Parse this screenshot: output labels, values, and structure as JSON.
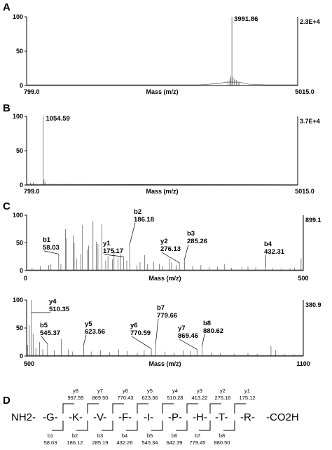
{
  "chart_data": [
    {
      "type": "line",
      "panel": "A",
      "xlabel": "Mass (m/z)",
      "xlim": [
        799.0,
        5015.0
      ],
      "ylim": [
        0,
        100
      ],
      "yticks": [
        "100",
        "50",
        "0"
      ],
      "x_min_label": "799.0",
      "x_max_label": "5015.0",
      "right_label": "2.3E+4",
      "peak_label": "3991.86",
      "peaks": [
        {
          "x": 3991.86,
          "y": 100
        },
        {
          "x": 3960,
          "y": 10
        },
        {
          "x": 3975,
          "y": 14
        },
        {
          "x": 4010,
          "y": 12
        },
        {
          "x": 4030,
          "y": 9
        },
        {
          "x": 4060,
          "y": 8
        },
        {
          "x": 3930,
          "y": 6
        },
        {
          "x": 4090,
          "y": 5
        },
        {
          "x": 4110,
          "y": 4
        }
      ],
      "baseline": [
        {
          "x": 799,
          "y": 1
        },
        {
          "x": 3500,
          "y": 1
        },
        {
          "x": 3800,
          "y": 3
        },
        {
          "x": 3900,
          "y": 5
        },
        {
          "x": 4100,
          "y": 5
        },
        {
          "x": 4250,
          "y": 2
        },
        {
          "x": 4500,
          "y": 1
        },
        {
          "x": 5015,
          "y": 1
        }
      ]
    },
    {
      "type": "line",
      "panel": "B",
      "xlabel": "Mass (m/z)",
      "xlim": [
        799.0,
        5015.0
      ],
      "ylim": [
        0,
        100
      ],
      "yticks": [
        "100",
        "50",
        "0"
      ],
      "x_min_label": "799.0",
      "x_max_label": "5015.0",
      "right_label": "3.7E+4",
      "peak_label": "1054.59",
      "peaks": [
        {
          "x": 1054.59,
          "y": 100
        },
        {
          "x": 1070,
          "y": 8
        },
        {
          "x": 1085,
          "y": 4
        },
        {
          "x": 900,
          "y": 4
        },
        {
          "x": 860,
          "y": 3
        },
        {
          "x": 1200,
          "y": 2
        },
        {
          "x": 1400,
          "y": 1.5
        }
      ],
      "baseline": [
        {
          "x": 799,
          "y": 1
        },
        {
          "x": 5015,
          "y": 0.5
        }
      ]
    },
    {
      "type": "line",
      "panel": "C",
      "xlabel": "Mass (m/z)",
      "xlim": [
        0,
        500
      ],
      "ylim": [
        0,
        100
      ],
      "yticks": [
        "100",
        "50",
        "0"
      ],
      "x_min_label": "0",
      "x_max_label": "500",
      "right_label": "899.1",
      "annotations": [
        {
          "ion": "b1",
          "mz": "58.03",
          "x": 58.03,
          "y": 30
        },
        {
          "ion": "y1",
          "mz": "175.17",
          "x": 175.17,
          "y": 25
        },
        {
          "ion": "b2",
          "mz": "186.18",
          "x": 186.18,
          "y": 47
        },
        {
          "ion": "y2",
          "mz": "276.13",
          "x": 276.13,
          "y": 14
        },
        {
          "ion": "b3",
          "mz": "285.26",
          "x": 285.26,
          "y": 20
        },
        {
          "ion": "b4",
          "mz": "432.31",
          "x": 432.31,
          "y": 8
        }
      ],
      "peaks": [
        {
          "x": 10,
          "y": 5
        },
        {
          "x": 25,
          "y": 8
        },
        {
          "x": 40,
          "y": 10
        },
        {
          "x": 44,
          "y": 12
        },
        {
          "x": 58.03,
          "y": 30
        },
        {
          "x": 62,
          "y": 12
        },
        {
          "x": 70,
          "y": 75
        },
        {
          "x": 72,
          "y": 58
        },
        {
          "x": 84,
          "y": 64
        },
        {
          "x": 86,
          "y": 50
        },
        {
          "x": 90,
          "y": 22
        },
        {
          "x": 98,
          "y": 30
        },
        {
          "x": 101,
          "y": 82
        },
        {
          "x": 110,
          "y": 38
        },
        {
          "x": 112,
          "y": 45
        },
        {
          "x": 120,
          "y": 90
        },
        {
          "x": 126,
          "y": 52
        },
        {
          "x": 129,
          "y": 48
        },
        {
          "x": 136,
          "y": 84
        },
        {
          "x": 143,
          "y": 18
        },
        {
          "x": 147,
          "y": 26
        },
        {
          "x": 155,
          "y": 20
        },
        {
          "x": 158,
          "y": 36
        },
        {
          "x": 165,
          "y": 22
        },
        {
          "x": 170,
          "y": 30
        },
        {
          "x": 175.17,
          "y": 25
        },
        {
          "x": 181,
          "y": 18
        },
        {
          "x": 186.18,
          "y": 47
        },
        {
          "x": 199,
          "y": 10
        },
        {
          "x": 205,
          "y": 15
        },
        {
          "x": 213,
          "y": 28
        },
        {
          "x": 218,
          "y": 12
        },
        {
          "x": 230,
          "y": 16
        },
        {
          "x": 240,
          "y": 12
        },
        {
          "x": 246,
          "y": 8
        },
        {
          "x": 258,
          "y": 22
        },
        {
          "x": 262,
          "y": 15
        },
        {
          "x": 270,
          "y": 10
        },
        {
          "x": 276.13,
          "y": 14
        },
        {
          "x": 285.26,
          "y": 20
        },
        {
          "x": 300,
          "y": 8
        },
        {
          "x": 315,
          "y": 10
        },
        {
          "x": 330,
          "y": 6
        },
        {
          "x": 345,
          "y": 7
        },
        {
          "x": 358,
          "y": 12
        },
        {
          "x": 370,
          "y": 5
        },
        {
          "x": 389,
          "y": 6
        },
        {
          "x": 400,
          "y": 7
        },
        {
          "x": 414,
          "y": 6
        },
        {
          "x": 432.31,
          "y": 8
        },
        {
          "x": 445,
          "y": 4
        },
        {
          "x": 460,
          "y": 3
        },
        {
          "x": 476,
          "y": 4
        },
        {
          "x": 484,
          "y": 5
        },
        {
          "x": 496,
          "y": 22
        }
      ]
    },
    {
      "type": "line",
      "panel": "C2",
      "xlabel": "Mass (m/z)",
      "xlim": [
        500,
        1100
      ],
      "ylim": [
        0,
        100
      ],
      "yticks": [
        "100",
        "50",
        "0"
      ],
      "x_min_label": "500",
      "x_max_label": "1100",
      "right_label": "380.9",
      "annotations": [
        {
          "ion": "y4",
          "mz": "510.35",
          "x": 510.35,
          "y": 100
        },
        {
          "ion": "b5",
          "mz": "545.37",
          "x": 545.37,
          "y": 22
        },
        {
          "ion": "y5",
          "mz": "623.56",
          "x": 623.56,
          "y": 20
        },
        {
          "ion": "y6",
          "mz": "770.59",
          "x": 770.59,
          "y": 13
        },
        {
          "ion": "b7",
          "mz": "779.66",
          "x": 779.66,
          "y": 20
        },
        {
          "ion": "y7",
          "mz": "869.46",
          "x": 869.46,
          "y": 12
        },
        {
          "ion": "b8",
          "mz": "880.62",
          "x": 880.62,
          "y": 18
        }
      ],
      "peaks": [
        {
          "x": 502,
          "y": 20
        },
        {
          "x": 506,
          "y": 55
        },
        {
          "x": 510.35,
          "y": 100
        },
        {
          "x": 514,
          "y": 40
        },
        {
          "x": 520,
          "y": 15
        },
        {
          "x": 528,
          "y": 25
        },
        {
          "x": 535,
          "y": 12
        },
        {
          "x": 545.37,
          "y": 22
        },
        {
          "x": 560,
          "y": 10
        },
        {
          "x": 575,
          "y": 30
        },
        {
          "x": 590,
          "y": 12
        },
        {
          "x": 600,
          "y": 8
        },
        {
          "x": 623.56,
          "y": 20
        },
        {
          "x": 640,
          "y": 8
        },
        {
          "x": 660,
          "y": 10
        },
        {
          "x": 680,
          "y": 7
        },
        {
          "x": 700,
          "y": 12
        },
        {
          "x": 718,
          "y": 9
        },
        {
          "x": 740,
          "y": 6
        },
        {
          "x": 755,
          "y": 10
        },
        {
          "x": 770.59,
          "y": 13
        },
        {
          "x": 779.66,
          "y": 20
        },
        {
          "x": 800,
          "y": 8
        },
        {
          "x": 820,
          "y": 6
        },
        {
          "x": 840,
          "y": 10
        },
        {
          "x": 855,
          "y": 9
        },
        {
          "x": 869.46,
          "y": 12
        },
        {
          "x": 880.62,
          "y": 18
        },
        {
          "x": 900,
          "y": 6
        },
        {
          "x": 920,
          "y": 5
        },
        {
          "x": 950,
          "y": 4
        },
        {
          "x": 980,
          "y": 5
        },
        {
          "x": 1000,
          "y": 4
        },
        {
          "x": 1030,
          "y": 18
        },
        {
          "x": 1040,
          "y": 10
        },
        {
          "x": 1060,
          "y": 3
        },
        {
          "x": 1080,
          "y": 3
        },
        {
          "x": 1095,
          "y": 2
        }
      ]
    }
  ],
  "panels": {
    "A": {
      "letter": "A"
    },
    "B": {
      "letter": "B"
    },
    "C": {
      "letter": "C"
    },
    "D": {
      "letter": "D"
    }
  },
  "sequence": {
    "prefix": "NH2-",
    "residues": [
      "-G-",
      "-K-",
      "-V-",
      "-F-",
      "-I-",
      "-P-",
      "-H-",
      "-T-",
      "-R-"
    ],
    "suffix": "-CO2H",
    "y_ions": [
      {
        "name": "y8",
        "mz": "997.59"
      },
      {
        "name": "y7",
        "mz": "869.50"
      },
      {
        "name": "y6",
        "mz": "770.43"
      },
      {
        "name": "y5",
        "mz": "623.36"
      },
      {
        "name": "y4",
        "mz": "510.28"
      },
      {
        "name": "y3",
        "mz": "413.22"
      },
      {
        "name": "y2",
        "mz": "276.16"
      },
      {
        "name": "y1",
        "mz": "175.12"
      }
    ],
    "b_ions": [
      {
        "name": "b1",
        "mz": "58.03"
      },
      {
        "name": "b2",
        "mz": "186.12"
      },
      {
        "name": "b3",
        "mz": "285.19"
      },
      {
        "name": "b4",
        "mz": "432.26"
      },
      {
        "name": "b5",
        "mz": "545.34"
      },
      {
        "name": "b6",
        "mz": "642.39"
      },
      {
        "name": "b7",
        "mz": "779.45"
      },
      {
        "name": "b8",
        "mz": "880.50"
      }
    ]
  }
}
